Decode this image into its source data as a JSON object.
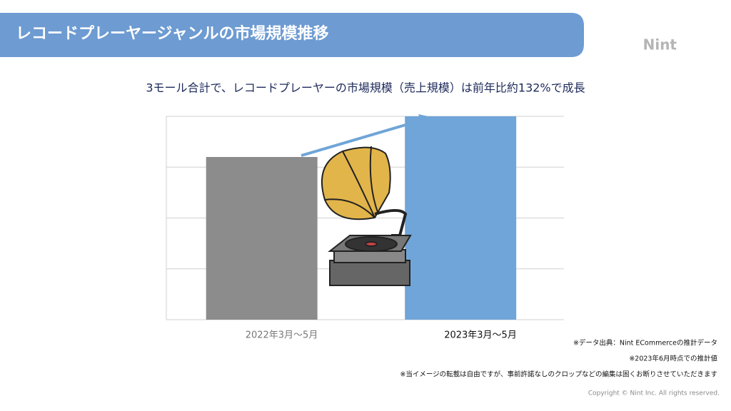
{
  "logo": "Nint",
  "notes": [
    "※データ出典：Nint ECommerceの推計データ",
    "※2023年6月時点での推計値",
    "※当イメージの転載は自由ですが、事前許諾なしのクロップなどの編集は固くお断りさせていただきます"
  ],
  "copyright": "Copyright © Nint Inc. All rights reserved.",
  "chart_data": {
    "type": "bar",
    "title": "レコードプレーヤージャンルの市場規模推移",
    "subtitle": "3モール合計で、レコードプレーヤーの市場規模（売上規模）は前年比約132%で成長",
    "categories": [
      "2022年3月〜5月",
      "2023年3月〜5月"
    ],
    "series": [
      {
        "name": null,
        "colors": [
          "#8c8c8c",
          "#6fa5d8"
        ],
        "values": [
          3.2,
          4.0
        ]
      }
    ],
    "ylim": [
      0,
      4
    ],
    "yticks": [
      0,
      1,
      2,
      3,
      4
    ],
    "grid": true
  }
}
